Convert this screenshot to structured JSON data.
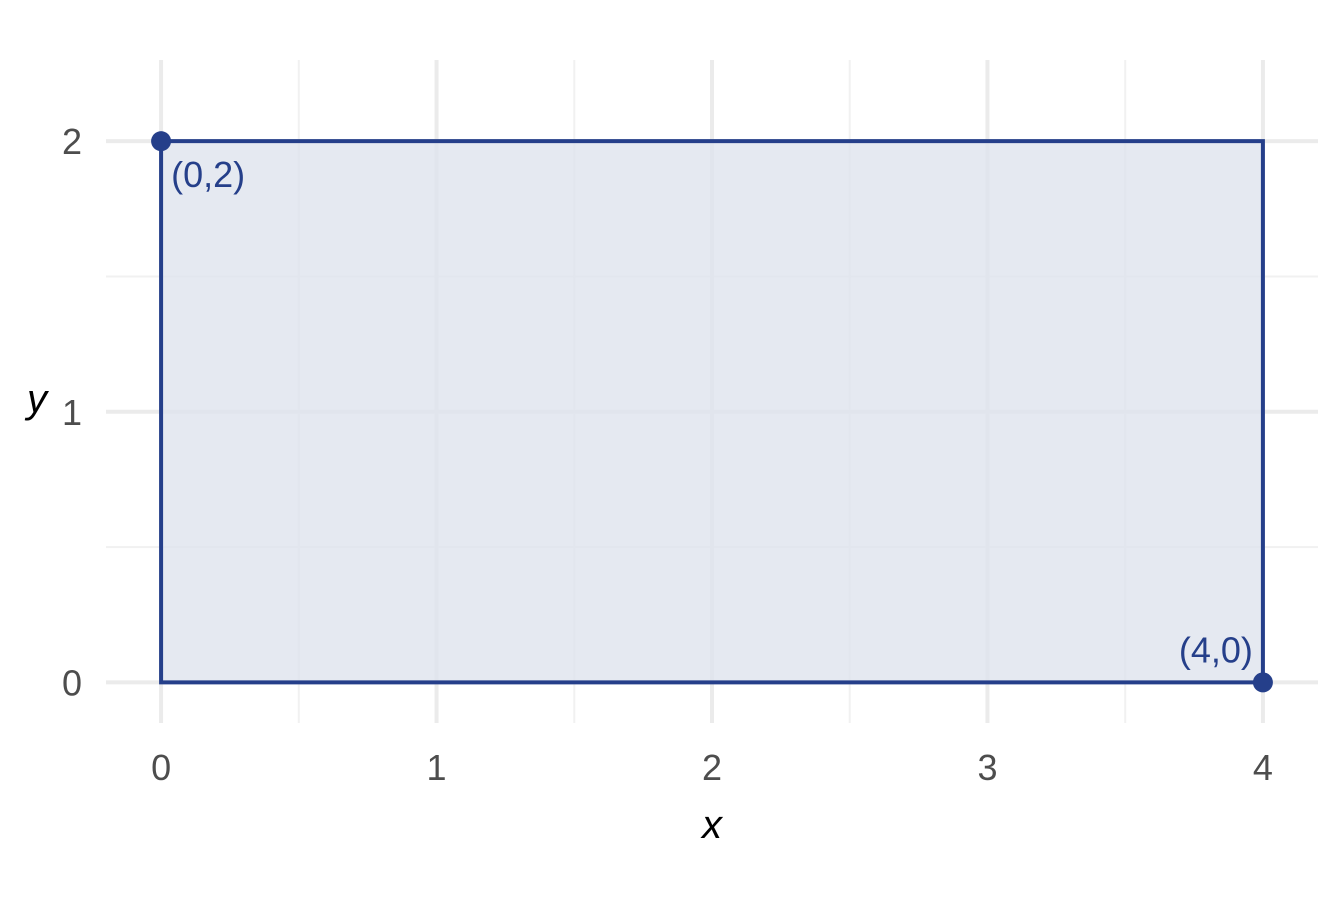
{
  "chart_data": {
    "type": "area",
    "xlabel": "x",
    "ylabel": "y",
    "xlim": [
      -0.2,
      4.2
    ],
    "ylim": [
      -0.15,
      2.3
    ],
    "x_ticks": [
      0,
      1,
      2,
      3,
      4
    ],
    "y_ticks": [
      0,
      1,
      2
    ],
    "x_tick_labels": [
      "0",
      "1",
      "2",
      "3",
      "4"
    ],
    "y_tick_labels": [
      "0",
      "1",
      "2"
    ],
    "x_minor_ticks": [
      0.5,
      1.5,
      2.5,
      3.5
    ],
    "y_minor_ticks": [
      0.5,
      1.5
    ],
    "grid": true,
    "region": {
      "polygon": [
        [
          0,
          0
        ],
        [
          4,
          0
        ],
        [
          4,
          2
        ],
        [
          0,
          2
        ]
      ],
      "fill_color": "#dfe3ee",
      "stroke_color": "#253f8a"
    },
    "points": [
      {
        "x": 0,
        "y": 2,
        "label": "(0,2)"
      },
      {
        "x": 4,
        "y": 0,
        "label": "(4,0)"
      }
    ],
    "colors": {
      "accent": "#253f8a",
      "fill": "#dfe3ee",
      "grid": "#ebebeb",
      "tick_text": "#4d4d4d"
    }
  }
}
